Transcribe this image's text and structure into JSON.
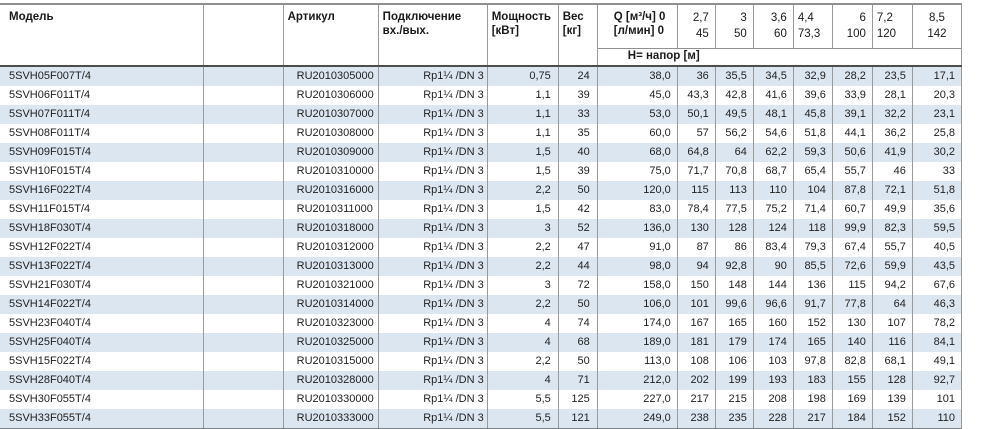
{
  "table": {
    "headers": {
      "model": "Модель",
      "article": "Артикул",
      "connection_line1": "Подключение",
      "connection_line2": "вх./вых.",
      "power_line1": "Мощность",
      "power_line2": "[кВт]",
      "weight_line1": "Вес",
      "weight_line2": "[кг]",
      "q_line1": "Q [м³/ч] 0",
      "q_line2": "[л/мин] 0",
      "head_row_label": "Н= напор [м]"
    },
    "flow_columns": [
      {
        "m3h": "2,7",
        "lmin": "45",
        "align": "right"
      },
      {
        "m3h": "3",
        "lmin": "50",
        "align": "right"
      },
      {
        "m3h": "3,6",
        "lmin": "60",
        "align": "right"
      },
      {
        "m3h": "4,4",
        "lmin": "73,3",
        "align": "left"
      },
      {
        "m3h": "6",
        "lmin": "100",
        "align": "right"
      },
      {
        "m3h": "7,2",
        "lmin": "120",
        "align": "left"
      },
      {
        "m3h": "8,5",
        "lmin": "142",
        "align": "center"
      }
    ],
    "rows": [
      {
        "model": "5SVH05F007T/4",
        "article": "RU2010305000",
        "connection": "Rp1¼ /DN 3",
        "power": "0,75",
        "weight": "24",
        "q0": "38,0",
        "heads": [
          "36",
          "35,5",
          "34,5",
          "32,9",
          "28,2",
          "23,5",
          "17,1"
        ]
      },
      {
        "model": "5SVH06F011T/4",
        "article": "RU2010306000",
        "connection": "Rp1¼ /DN 3",
        "power": "1,1",
        "weight": "39",
        "q0": "45,0",
        "heads": [
          "43,3",
          "42,8",
          "41,6",
          "39,6",
          "33,9",
          "28,1",
          "20,3"
        ]
      },
      {
        "model": "5SVH07F011T/4",
        "article": "RU2010307000",
        "connection": "Rp1¼ /DN 3",
        "power": "1,1",
        "weight": "33",
        "q0": "53,0",
        "heads": [
          "50,1",
          "49,5",
          "48,1",
          "45,8",
          "39,1",
          "32,2",
          "23,1"
        ]
      },
      {
        "model": "5SVH08F011T/4",
        "article": "RU2010308000",
        "connection": "Rp1¼ /DN 3",
        "power": "1,1",
        "weight": "35",
        "q0": "60,0",
        "heads": [
          "57",
          "56,2",
          "54,6",
          "51,8",
          "44,1",
          "36,2",
          "25,8"
        ]
      },
      {
        "model": "5SVH09F015T/4",
        "article": "RU2010309000",
        "connection": "Rp1¼ /DN 3",
        "power": "1,5",
        "weight": "40",
        "q0": "68,0",
        "heads": [
          "64,8",
          "64",
          "62,2",
          "59,3",
          "50,6",
          "41,9",
          "30,2"
        ]
      },
      {
        "model": "5SVH10F015T/4",
        "article": "RU2010310000",
        "connection": "Rp1¼ /DN 3",
        "power": "1,5",
        "weight": "39",
        "q0": "75,0",
        "heads": [
          "71,7",
          "70,8",
          "68,7",
          "65,4",
          "55,7",
          "46",
          "33"
        ]
      },
      {
        "model": "5SVH16F022T/4",
        "article": "RU2010316000",
        "connection": "Rp1¼ /DN 3",
        "power": "2,2",
        "weight": "50",
        "q0": "120,0",
        "heads": [
          "115",
          "113",
          "110",
          "104",
          "87,8",
          "72,1",
          "51,8"
        ]
      },
      {
        "model": "5SVH11F015T/4",
        "article": "RU2010311000",
        "connection": "Rp1¼ /DN 3",
        "power": "1,5",
        "weight": "42",
        "q0": "83,0",
        "heads": [
          "78,4",
          "77,5",
          "75,2",
          "71,4",
          "60,7",
          "49,9",
          "35,6"
        ]
      },
      {
        "model": "5SVH18F030T/4",
        "article": "RU2010318000",
        "connection": "Rp1¼ /DN 3",
        "power": "3",
        "weight": "52",
        "q0": "136,0",
        "heads": [
          "130",
          "128",
          "124",
          "118",
          "99,9",
          "82,3",
          "59,5"
        ]
      },
      {
        "model": "5SVH12F022T/4",
        "article": "RU2010312000",
        "connection": "Rp1¼ /DN 3",
        "power": "2,2",
        "weight": "47",
        "q0": "91,0",
        "heads": [
          "87",
          "86",
          "83,4",
          "79,3",
          "67,4",
          "55,7",
          "40,5"
        ]
      },
      {
        "model": "5SVH13F022T/4",
        "article": "RU2010313000",
        "connection": "Rp1¼ /DN 3",
        "power": "2,2",
        "weight": "44",
        "q0": "98,0",
        "heads": [
          "94",
          "92,8",
          "90",
          "85,5",
          "72,6",
          "59,9",
          "43,5"
        ]
      },
      {
        "model": "5SVH21F030T/4",
        "article": "RU2010321000",
        "connection": "Rp1¼ /DN 3",
        "power": "3",
        "weight": "72",
        "q0": "158,0",
        "heads": [
          "150",
          "148",
          "144",
          "136",
          "115",
          "94,2",
          "67,6"
        ]
      },
      {
        "model": "5SVH14F022T/4",
        "article": "RU2010314000",
        "connection": "Rp1¼ /DN 3",
        "power": "2,2",
        "weight": "50",
        "q0": "106,0",
        "heads": [
          "101",
          "99,6",
          "96,6",
          "91,7",
          "77,8",
          "64",
          "46,3"
        ]
      },
      {
        "model": "5SVH23F040T/4",
        "article": "RU2010323000",
        "connection": "Rp1¼ /DN 3",
        "power": "4",
        "weight": "74",
        "q0": "174,0",
        "heads": [
          "167",
          "165",
          "160",
          "152",
          "130",
          "107",
          "78,2"
        ]
      },
      {
        "model": "5SVH25F040T/4",
        "article": "RU2010325000",
        "connection": "Rp1¼ /DN 3",
        "power": "4",
        "weight": "68",
        "q0": "189,0",
        "heads": [
          "181",
          "179",
          "174",
          "165",
          "140",
          "116",
          "84,1"
        ]
      },
      {
        "model": "5SVH15F022T/4",
        "article": "RU2010315000",
        "connection": "Rp1¼ /DN 3",
        "power": "2,2",
        "weight": "50",
        "q0": "113,0",
        "heads": [
          "108",
          "106",
          "103",
          "97,8",
          "82,8",
          "68,1",
          "49,1"
        ]
      },
      {
        "model": "5SVH28F040T/4",
        "article": "RU2010328000",
        "connection": "Rp1¼ /DN 3",
        "power": "4",
        "weight": "71",
        "q0": "212,0",
        "heads": [
          "202",
          "199",
          "193",
          "183",
          "155",
          "128",
          "92,7"
        ]
      },
      {
        "model": "5SVH30F055T/4",
        "article": "RU2010330000",
        "connection": "Rp1¼ /DN 3",
        "power": "5,5",
        "weight": "125",
        "q0": "227,0",
        "heads": [
          "217",
          "215",
          "208",
          "198",
          "169",
          "139",
          "101"
        ]
      },
      {
        "model": "5SVH33F055T/4",
        "article": "RU2010333000",
        "connection": "Rp1¼ /DN 3",
        "power": "5,5",
        "weight": "121",
        "q0": "249,0",
        "heads": [
          "238",
          "235",
          "228",
          "217",
          "184",
          "152",
          "110"
        ]
      }
    ],
    "colors": {
      "stripe_blue": "#dce6f1",
      "grid_line": "#9a9a9a",
      "header_separator": "#4d4d4d",
      "outer_border": "#8f8f8f"
    }
  }
}
